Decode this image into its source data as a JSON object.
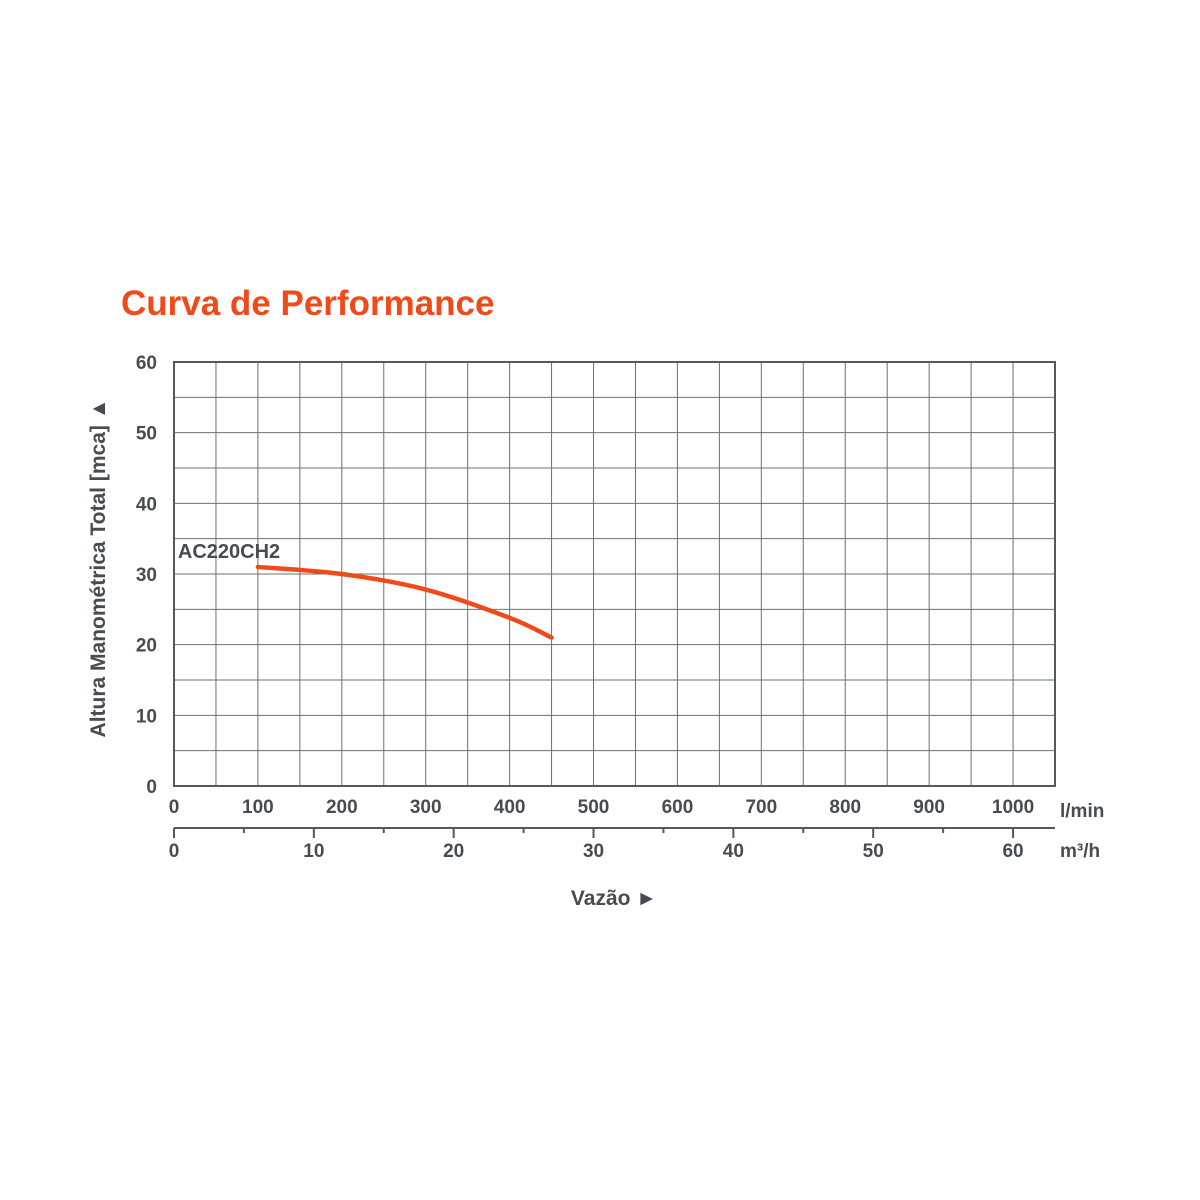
{
  "chart_data": {
    "type": "line",
    "title": "Curva de Performance",
    "ylabel": "Altura Manométrica Total [mca] ▲",
    "xlabel": "Vazão ►",
    "ylim": [
      0,
      60
    ],
    "yticks": [
      "0",
      "10",
      "20",
      "30",
      "40",
      "50",
      "60"
    ],
    "xlim": [
      0,
      1050
    ],
    "x_primary": {
      "unit": "l/min",
      "ticks": [
        "0",
        "100",
        "200",
        "300",
        "400",
        "500",
        "600",
        "700",
        "800",
        "900",
        "1000"
      ]
    },
    "x_secondary": {
      "unit": "m³/h",
      "ticks": [
        "0",
        "10",
        "20",
        "30",
        "40",
        "50",
        "60"
      ],
      "lim": [
        0,
        63
      ]
    },
    "grid": true,
    "series": [
      {
        "name": "AC220CH2",
        "color": "#f04a1a",
        "x": [
          100,
          200,
          300,
          400,
          450
        ],
        "y": [
          31,
          30,
          27.8,
          23.8,
          21
        ]
      }
    ]
  },
  "colors": {
    "title": "#f04a1a",
    "text": "#474c52",
    "grid": "#6b6f74"
  }
}
